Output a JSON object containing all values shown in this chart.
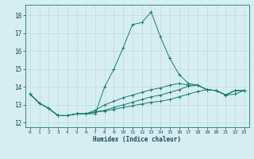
{
  "title": "",
  "xlabel": "Humidex (Indice chaleur)",
  "ylabel": "",
  "xlim": [
    -0.5,
    23.5
  ],
  "ylim": [
    11.75,
    18.6
  ],
  "xticks": [
    0,
    1,
    2,
    3,
    4,
    5,
    6,
    7,
    8,
    9,
    10,
    11,
    12,
    13,
    14,
    15,
    16,
    17,
    18,
    19,
    20,
    21,
    22,
    23
  ],
  "yticks": [
    12,
    13,
    14,
    15,
    16,
    17,
    18
  ],
  "bg_color": "#d6eef2",
  "grid_color": "#b8d4d8",
  "line_color": "#1a7a6e",
  "series": [
    [
      13.6,
      13.1,
      12.8,
      12.4,
      12.4,
      12.5,
      12.5,
      12.5,
      14.0,
      15.0,
      16.2,
      17.5,
      17.6,
      18.2,
      16.8,
      15.6,
      14.7,
      14.2,
      14.1,
      13.85,
      13.8,
      13.55,
      13.8,
      13.8
    ],
    [
      13.6,
      13.1,
      12.8,
      12.4,
      12.4,
      12.5,
      12.5,
      12.7,
      13.0,
      13.2,
      13.4,
      13.55,
      13.7,
      13.85,
      13.95,
      14.1,
      14.2,
      14.1,
      14.1,
      13.85,
      13.8,
      13.55,
      13.8,
      13.8
    ],
    [
      13.6,
      13.1,
      12.8,
      12.4,
      12.4,
      12.5,
      12.5,
      12.6,
      12.7,
      12.85,
      13.0,
      13.15,
      13.3,
      13.45,
      13.55,
      13.7,
      13.85,
      14.05,
      14.1,
      13.85,
      13.8,
      13.55,
      13.8,
      13.8
    ],
    [
      13.6,
      13.1,
      12.8,
      12.4,
      12.4,
      12.5,
      12.5,
      12.6,
      12.65,
      12.75,
      12.85,
      12.95,
      13.05,
      13.15,
      13.2,
      13.3,
      13.45,
      13.6,
      13.75,
      13.85,
      13.8,
      13.55,
      13.6,
      13.8
    ]
  ]
}
